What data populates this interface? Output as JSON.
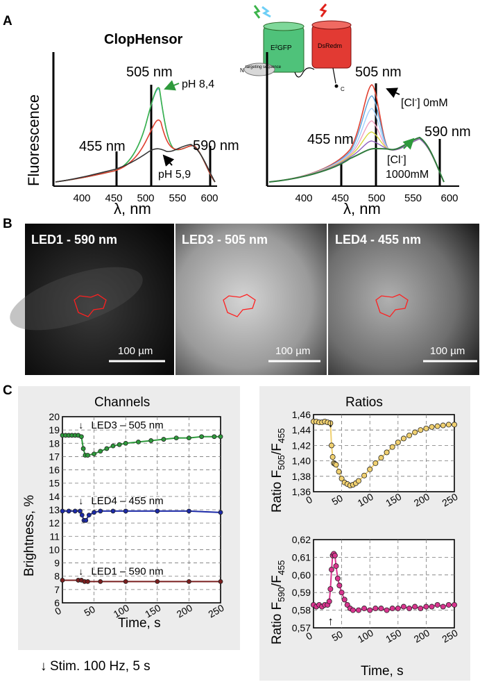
{
  "panel_labels": {
    "a": "A",
    "b": "B",
    "c": "C"
  },
  "sensor_name": "ClopHensor",
  "schematic": {
    "gfp_label": "E²GFP",
    "dsred_label": "DsRedm",
    "targeting_label": "targeting sequence",
    "n_label": "N",
    "c_label": "C"
  },
  "colors": {
    "gfp": "#4fc27a",
    "dsred": "#e23a33",
    "led3": "#2e9a3c",
    "led4": "#1c2aa8",
    "led1": "#7a1f1f",
    "ratio_top": "#f0d070",
    "ratio_bottom": "#d9358f",
    "roi": "#ff2020"
  },
  "spectra_ph": {
    "y_label": "Fluorescence",
    "x_label": "λ, nm",
    "x_ticks": [
      "400",
      "450",
      "500",
      "550",
      "600"
    ],
    "markers": {
      "m455": "455 nm",
      "m505": "505 nm",
      "m590": "590 nm"
    },
    "ann_high": "pH 8,4",
    "ann_low": "pH 5,9"
  },
  "spectra_cl": {
    "x_label": "λ, nm",
    "x_ticks": [
      "400",
      "450",
      "500",
      "550",
      "600"
    ],
    "markers": {
      "m455": "455 nm",
      "m505": "505 nm",
      "m590": "590 nm"
    },
    "ann_low_pre": "[Cl",
    "ann_low_sup": "-",
    "ann_low_post": "] 0mM",
    "ann_high_pre": "[Cl",
    "ann_high_sup": "-",
    "ann_high_post": "]",
    "ann_high_conc": "1000mM"
  },
  "images": [
    {
      "label": "LED1 - 590 nm",
      "scale": "100 µm"
    },
    {
      "label": "LED3 - 505 nm",
      "scale": "100 µm"
    },
    {
      "label": "LED4 - 455 nm",
      "scale": "100 µm"
    }
  ],
  "stim_note": "Stim. 100 Hz, 5 s",
  "stim_arrow": "↓",
  "chart_data": [
    {
      "type": "scatter",
      "title": "Channels",
      "xlabel": "Time, s",
      "ylabel": "Brightness, %",
      "xlim": [
        0,
        250
      ],
      "ylim": [
        6,
        20
      ],
      "x_ticks": [
        "0",
        "50",
        "100",
        "150",
        "200",
        "250"
      ],
      "y_ticks": [
        "6",
        "7",
        "8",
        "9",
        "10",
        "11",
        "12",
        "13",
        "14",
        "15",
        "16",
        "17",
        "18",
        "19",
        "20"
      ],
      "stimulus_time": 30,
      "series": [
        {
          "name": "LED3 – 505 nm",
          "key": "led3",
          "x": [
            0,
            5,
            10,
            15,
            20,
            25,
            30,
            33,
            36,
            40,
            50,
            60,
            70,
            80,
            90,
            100,
            120,
            140,
            160,
            180,
            200,
            220,
            240,
            250
          ],
          "values": [
            18.6,
            18.6,
            18.6,
            18.6,
            18.6,
            18.6,
            18.5,
            17.6,
            17.1,
            17.1,
            17.2,
            17.4,
            17.6,
            17.8,
            17.9,
            18.0,
            18.1,
            18.2,
            18.3,
            18.4,
            18.4,
            18.5,
            18.5,
            18.5
          ]
        },
        {
          "name": "LED4 – 455 nm",
          "key": "led4",
          "x": [
            0,
            10,
            20,
            28,
            31,
            34,
            37,
            42,
            50,
            60,
            80,
            100,
            150,
            200,
            250
          ],
          "values": [
            12.9,
            12.9,
            12.9,
            12.9,
            12.6,
            12.2,
            12.2,
            12.6,
            12.8,
            12.9,
            12.9,
            12.9,
            12.9,
            12.9,
            12.8
          ]
        },
        {
          "name": "LED1 – 590 nm",
          "key": "led1",
          "x": [
            0,
            25,
            30,
            35,
            40,
            60,
            100,
            150,
            200,
            250
          ],
          "values": [
            7.7,
            7.7,
            7.7,
            7.6,
            7.6,
            7.6,
            7.6,
            7.6,
            7.6,
            7.6
          ]
        }
      ]
    },
    {
      "type": "scatter",
      "title": "Ratios",
      "xlabel": "",
      "ylabel_main": "Ratio F",
      "ylabel_sub1": "505",
      "ylabel_mid": "/F",
      "ylabel_sub2": "455",
      "xlim": [
        0,
        250
      ],
      "ylim": [
        1.36,
        1.46
      ],
      "x_ticks": [
        "0",
        "50",
        "100",
        "150",
        "200",
        "250"
      ],
      "y_ticks": [
        "1,36",
        "1,38",
        "1,40",
        "1,42",
        "1,44",
        "1,46"
      ],
      "stimulus_time": 30,
      "x": [
        0,
        5,
        10,
        15,
        20,
        25,
        30,
        32,
        34,
        36,
        38,
        40,
        45,
        50,
        55,
        60,
        65,
        70,
        75,
        80,
        90,
        100,
        110,
        120,
        130,
        140,
        150,
        160,
        170,
        180,
        190,
        200,
        210,
        220,
        230,
        240,
        250
      ],
      "values": [
        1.451,
        1.451,
        1.45,
        1.45,
        1.451,
        1.45,
        1.449,
        1.42,
        1.405,
        1.397,
        1.396,
        1.395,
        1.386,
        1.377,
        1.372,
        1.37,
        1.368,
        1.369,
        1.371,
        1.374,
        1.381,
        1.389,
        1.397,
        1.404,
        1.411,
        1.418,
        1.424,
        1.429,
        1.433,
        1.437,
        1.44,
        1.442,
        1.444,
        1.445,
        1.446,
        1.447,
        1.447
      ]
    },
    {
      "type": "scatter",
      "title": "",
      "xlabel": "Time, s",
      "ylabel_main": "Ratio F",
      "ylabel_sub1": "590",
      "ylabel_mid": "/F",
      "ylabel_sub2": "455",
      "xlim": [
        0,
        250
      ],
      "ylim": [
        0.57,
        0.62
      ],
      "x_ticks": [
        "0",
        "50",
        "100",
        "150",
        "200",
        "250"
      ],
      "y_ticks": [
        "0,57",
        "0,58",
        "0,59",
        "0,60",
        "0,61",
        "0,62"
      ],
      "stimulus_time": 30,
      "x": [
        0,
        5,
        10,
        15,
        20,
        25,
        28,
        30,
        32,
        34,
        36,
        38,
        40,
        43,
        46,
        50,
        55,
        60,
        65,
        70,
        80,
        90,
        100,
        110,
        120,
        130,
        140,
        150,
        160,
        170,
        180,
        190,
        200,
        210,
        220,
        230,
        240,
        250
      ],
      "values": [
        0.583,
        0.582,
        0.583,
        0.582,
        0.583,
        0.583,
        0.585,
        0.592,
        0.603,
        0.611,
        0.612,
        0.611,
        0.605,
        0.598,
        0.594,
        0.59,
        0.586,
        0.583,
        0.581,
        0.58,
        0.58,
        0.581,
        0.58,
        0.581,
        0.581,
        0.58,
        0.581,
        0.581,
        0.582,
        0.581,
        0.582,
        0.581,
        0.582,
        0.582,
        0.583,
        0.582,
        0.583,
        0.583
      ]
    }
  ]
}
